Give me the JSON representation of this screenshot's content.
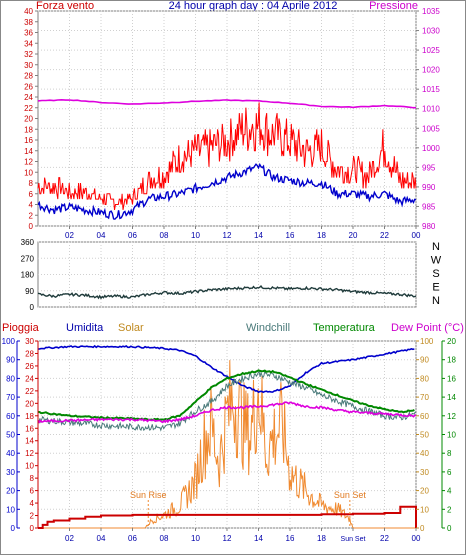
{
  "header": {
    "left_label": "Forza vento",
    "title": "24 hour graph day : 04 Aprile 2012",
    "right_label": "Pressione"
  },
  "legend": {
    "pioggia": "Pioggia",
    "umidita": "Umidita",
    "solar": "Solar",
    "windchill": "Windchill",
    "temperatura": "Temperatura",
    "dewpoint": "Dew Point (°C)"
  },
  "annotations": {
    "sunrise": "Sun Rise",
    "sunset": "Sun Set",
    "sunset_axis": "Sun Set"
  },
  "colors": {
    "wind_gust": "#ff0000",
    "wind_avg": "#0000cc",
    "pressure": "#dd00dd",
    "direction": "#1f3b3b",
    "humidity": "#0000cc",
    "solar": "#f08a30",
    "windchill": "#4a7a7a",
    "temperature": "#008800",
    "dewpoint": "#dd00dd",
    "rain": "#cc0000",
    "wind_axis_text": "#cc0000",
    "pressure_axis_text": "#cc00cc",
    "grid": "#d0d0d0"
  },
  "chart_data": [
    {
      "type": "line",
      "id": "wind_pressure",
      "x_ticks": [
        "02",
        "04",
        "06",
        "08",
        "10",
        "12",
        "14",
        "16",
        "18",
        "20",
        "22",
        "00"
      ],
      "y_left": {
        "unit_label": "Forza vento",
        "ylim": [
          0,
          40
        ],
        "ticks": [
          0,
          2,
          4,
          6,
          8,
          10,
          12,
          14,
          16,
          18,
          20,
          22,
          24,
          26,
          28,
          30,
          32,
          34,
          36,
          38,
          40
        ]
      },
      "y_right": {
        "unit_label": "Pressione",
        "ylim": [
          980,
          1035
        ],
        "ticks": [
          980,
          985,
          990,
          995,
          1000,
          1005,
          1010,
          1015,
          1020,
          1025,
          1030,
          1035
        ]
      },
      "series": [
        {
          "key": "gust",
          "axis": "left",
          "hours": [
            0,
            1,
            2,
            3,
            4,
            5,
            6,
            7,
            8,
            9,
            10,
            11,
            12,
            13,
            14,
            15,
            16,
            17,
            18,
            19,
            20,
            21,
            22,
            23,
            24
          ],
          "values": [
            7,
            7,
            6,
            6,
            5,
            4,
            5,
            8,
            9,
            12,
            13,
            14,
            15,
            17,
            18,
            16,
            15,
            13,
            14,
            10,
            10,
            9,
            14,
            8,
            8
          ]
        },
        {
          "key": "average",
          "axis": "left",
          "hours": [
            0,
            1,
            2,
            3,
            4,
            5,
            6,
            7,
            8,
            9,
            10,
            11,
            12,
            13,
            14,
            15,
            16,
            17,
            18,
            19,
            20,
            21,
            22,
            23,
            24
          ],
          "values": [
            4,
            3,
            3.5,
            3,
            2.5,
            2,
            3,
            5,
            5.5,
            6,
            7,
            8,
            9,
            10,
            11,
            9,
            8.5,
            8,
            8,
            6,
            6,
            5.5,
            6,
            4.5,
            5
          ]
        },
        {
          "key": "pressure",
          "axis": "right",
          "hours": [
            0,
            2,
            4,
            6,
            8,
            10,
            12,
            14,
            16,
            18,
            20,
            22,
            24
          ],
          "values": [
            1012,
            1012.3,
            1011.6,
            1011.2,
            1011.5,
            1011.9,
            1012.2,
            1012.0,
            1011.4,
            1010.6,
            1010.4,
            1010.8,
            1010.3
          ]
        }
      ]
    },
    {
      "type": "line",
      "id": "wind_direction",
      "x_ticks": [
        "02",
        "04",
        "06",
        "08",
        "10",
        "12",
        "14",
        "16",
        "18",
        "20",
        "22",
        "00"
      ],
      "y_left": {
        "ylim": [
          0,
          360
        ],
        "ticks": [
          0,
          90,
          180,
          270,
          360
        ]
      },
      "y_right_labels": [
        "N",
        "W",
        "S",
        "E",
        "N"
      ],
      "series": [
        {
          "key": "direction",
          "hours": [
            0,
            1,
            2,
            3,
            4,
            5,
            6,
            7,
            8,
            9,
            10,
            11,
            12,
            13,
            14,
            15,
            16,
            17,
            18,
            19,
            20,
            21,
            22,
            23,
            24
          ],
          "values": [
            70,
            60,
            70,
            65,
            55,
            60,
            55,
            70,
            80,
            75,
            85,
            95,
            100,
            105,
            110,
            105,
            100,
            105,
            100,
            95,
            85,
            80,
            75,
            70,
            60
          ]
        }
      ]
    },
    {
      "type": "line",
      "id": "weather",
      "x_ticks": [
        "02",
        "04",
        "06",
        "08",
        "10",
        "12",
        "14",
        "16",
        "18",
        "Sun Set",
        "22",
        "00"
      ],
      "y_axes": {
        "humidity": {
          "ylim": [
            0,
            100
          ],
          "ticks": [
            0,
            10,
            20,
            30,
            40,
            50,
            60,
            70,
            80,
            90,
            100
          ]
        },
        "rain": {
          "ylim": [
            0,
            30
          ],
          "ticks": [
            0,
            2,
            4,
            6,
            8,
            10,
            12,
            14,
            16,
            18,
            20,
            22,
            24,
            26,
            28,
            30
          ]
        },
        "solar": {
          "ylim": [
            0,
            100
          ],
          "ticks": [
            0,
            10,
            20,
            30,
            40,
            50,
            60,
            70,
            80,
            90,
            100
          ]
        },
        "temperature": {
          "ylim": [
            0,
            20
          ],
          "ticks": [
            0,
            2,
            4,
            6,
            8,
            10,
            12,
            14,
            16,
            18,
            20
          ]
        }
      },
      "series": [
        {
          "key": "humidity",
          "hours": [
            0,
            2,
            4,
            6,
            8,
            9,
            10,
            11,
            12,
            13,
            14,
            15,
            16,
            17,
            18,
            19,
            20,
            22,
            24
          ],
          "values": [
            96,
            97,
            97,
            97,
            96,
            95,
            92,
            86,
            81,
            76,
            73,
            73,
            76,
            83,
            88,
            89,
            90,
            93,
            96
          ]
        },
        {
          "key": "solar",
          "hours": [
            0,
            6.8,
            7.2,
            8,
            9,
            10,
            10.5,
            11,
            11.5,
            12,
            12.5,
            13,
            13.5,
            14,
            14.5,
            15,
            15.5,
            16,
            17,
            18,
            19,
            19.8,
            20,
            24
          ],
          "values": [
            0,
            0,
            4,
            7,
            12,
            25,
            45,
            55,
            35,
            60,
            70,
            55,
            50,
            75,
            40,
            50,
            55,
            30,
            20,
            12,
            10,
            5,
            0,
            0
          ]
        },
        {
          "key": "windchill",
          "hours": [
            0,
            2,
            4,
            6,
            7,
            8,
            9,
            10,
            11,
            12,
            13,
            14,
            15,
            16,
            17,
            18,
            19,
            20,
            21,
            22,
            23,
            24
          ],
          "values": [
            11.6,
            11.3,
            11.0,
            10.8,
            10.8,
            10.7,
            11.2,
            12.5,
            13.5,
            15.2,
            16.0,
            16.5,
            16.3,
            15.6,
            15.0,
            14.2,
            13.6,
            13.0,
            12.5,
            12.0,
            11.8,
            12.2
          ]
        },
        {
          "key": "temperature",
          "hours": [
            0,
            2,
            4,
            6,
            7,
            8,
            9,
            10,
            11,
            12,
            13,
            14,
            15,
            16,
            17,
            18,
            19,
            20,
            21,
            22,
            23,
            24
          ],
          "values": [
            12.4,
            12.0,
            11.8,
            11.7,
            11.6,
            11.6,
            12.0,
            13.5,
            15.0,
            16.0,
            16.5,
            16.8,
            16.7,
            16.1,
            15.4,
            14.8,
            14.2,
            13.6,
            13.1,
            12.7,
            12.4,
            12.6
          ]
        },
        {
          "key": "dewpoint",
          "hours": [
            0,
            2,
            4,
            6,
            8,
            9,
            10,
            11,
            12,
            13,
            14,
            15,
            16,
            17,
            18,
            19,
            20,
            22,
            24
          ],
          "values": [
            11.4,
            11.5,
            11.6,
            11.6,
            11.4,
            11.6,
            12.0,
            12.6,
            12.9,
            12.9,
            13.0,
            13.2,
            13.4,
            13.0,
            12.9,
            12.6,
            12.4,
            12.2,
            12.0
          ]
        },
        {
          "key": "rain",
          "hours": [
            0,
            0.3,
            0.6,
            1,
            2,
            3,
            4,
            5,
            6,
            8,
            10,
            12,
            14,
            16,
            18,
            20,
            21,
            22,
            23,
            23.5,
            24
          ],
          "values": [
            0,
            0.5,
            1.0,
            1.2,
            1.5,
            1.8,
            2.0,
            2.0,
            2.1,
            2.1,
            2.1,
            2.1,
            2.1,
            2.1,
            2.2,
            2.3,
            2.3,
            2.4,
            3.4,
            3.4,
            0
          ]
        }
      ]
    }
  ]
}
